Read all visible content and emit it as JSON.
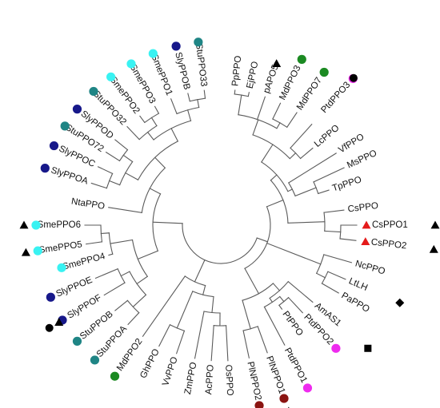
{
  "colors": {
    "navy": "#17188a",
    "teal": "#1f8585",
    "cyan": "#39f2f2",
    "green": "#1b8a22",
    "magenta": "#ee2bee",
    "maroon": "#8a1411",
    "red": "#e41a1a",
    "black": "#000000",
    "branch": "#5a5a5a"
  },
  "tree": {
    "leaves": [
      {
        "id": "PpPPO",
        "label": "PpPPO"
      },
      {
        "id": "EjPPO",
        "label": "EjPPO"
      },
      {
        "id": "pAPO5",
        "label": "pAPO5",
        "marker": "triangle"
      },
      {
        "id": "MdPPO3",
        "label": "MdPPO3",
        "dot": "green"
      },
      {
        "id": "MdPPO7",
        "label": "MdPPO7",
        "dot": "green"
      },
      {
        "id": "PtdPPO3",
        "label": "PtdPPO3",
        "dot": "magenta",
        "marker": "circle"
      },
      {
        "id": "LcPPO",
        "label": "LcPPO"
      },
      {
        "id": "VfPPO",
        "label": "VfPPO"
      },
      {
        "id": "MsPPO",
        "label": "MsPPO"
      },
      {
        "id": "TpPPO",
        "label": "TpPPO"
      },
      {
        "id": "CsPPO",
        "label": "CsPPO"
      },
      {
        "id": "CsPPO1",
        "label": "CsPPO1",
        "sym": "red-triangle",
        "marker": "triangle"
      },
      {
        "id": "CsPPO2",
        "label": "CsPPO2",
        "sym": "red-triangle",
        "marker": "triangle"
      },
      {
        "id": "NcPPO",
        "label": "NcPPO"
      },
      {
        "id": "LtLH",
        "label": "LtLH",
        "marker": "diamond"
      },
      {
        "id": "PaPPO",
        "label": "PaPPO"
      },
      {
        "id": "AmAS1",
        "label": "AmAS1",
        "marker": "square"
      },
      {
        "id": "PtdPPO2",
        "label": "PtdPPO2",
        "dot": "magenta"
      },
      {
        "id": "PtPPO",
        "label": "PtPPO"
      },
      {
        "id": "PtdPPO1",
        "label": "PtdPPO1",
        "dot": "magenta"
      },
      {
        "id": "PlNPPO1",
        "label": "PlNPPO1",
        "dot": "maroon",
        "marker": "triangle"
      },
      {
        "id": "PlNPPO2",
        "label": "PlNPPO2",
        "dot": "maroon",
        "marker": "triangle"
      },
      {
        "id": "OsPPO",
        "label": "OsPPO"
      },
      {
        "id": "AcPPO",
        "label": "AcPPO"
      },
      {
        "id": "ZmPPO",
        "label": "ZmPPO"
      },
      {
        "id": "VvPPO",
        "label": "VvPPO"
      },
      {
        "id": "GhPPO",
        "label": "GhPPO"
      },
      {
        "id": "MdPPO2",
        "label": "MdPPO2",
        "dot": "green"
      },
      {
        "id": "StuPPOA",
        "label": "StuPPOA",
        "dot": "teal"
      },
      {
        "id": "StuPPOB",
        "label": "StuPPOB",
        "dot": "teal"
      },
      {
        "id": "SlyPPOF",
        "label": "SlyPPOF",
        "dot": "navy",
        "marker": "circle-triangle"
      },
      {
        "id": "SlyPPOE",
        "label": "SlyPPOE",
        "dot": "navy"
      },
      {
        "id": "SmePPO4",
        "label": "SmePPO4",
        "dot": "cyan"
      },
      {
        "id": "SmePPO5",
        "label": "SmePPO5",
        "dot": "cyan",
        "marker": "triangle"
      },
      {
        "id": "SmePPO6",
        "label": "SmePPO6",
        "dot": "cyan",
        "marker": "triangle"
      },
      {
        "id": "NtaPPO",
        "label": "NtaPPO"
      },
      {
        "id": "SlyPPOA",
        "label": "SlyPPOA",
        "dot": "navy"
      },
      {
        "id": "SlyPPOC",
        "label": "SlyPPOC",
        "dot": "navy"
      },
      {
        "id": "StuPPO72",
        "label": "StuPPO72",
        "dot": "teal"
      },
      {
        "id": "SlyPPOD",
        "label": "SlyPPOD",
        "dot": "navy"
      },
      {
        "id": "StuPPO32",
        "label": "StuPPO32",
        "dot": "teal"
      },
      {
        "id": "SmePPO2",
        "label": "SmePPO2",
        "dot": "cyan"
      },
      {
        "id": "SmePPO3",
        "label": "SmePPO3",
        "dot": "cyan"
      },
      {
        "id": "SmePPO1",
        "label": "SmePPO1",
        "dot": "cyan"
      },
      {
        "id": "SlyPPOB",
        "label": "SlyPPOB",
        "dot": "navy"
      },
      {
        "id": "StuPPO33",
        "label": "StuPPO33",
        "dot": "teal"
      }
    ],
    "clades": [
      {
        "id": "c_ppej",
        "children": [
          "PpPPO",
          "EjPPO"
        ]
      },
      {
        "id": "c_md37",
        "children": [
          "MdPPO3",
          "MdPPO7"
        ]
      },
      {
        "id": "c_pa",
        "children": [
          "c_ppej",
          "pAPO5",
          "c_md37"
        ]
      },
      {
        "id": "c_ptlc",
        "children": [
          "PtdPPO3",
          "LcPPO"
        ]
      },
      {
        "id": "c_ros",
        "children": [
          "c_pa",
          "c_ptlc"
        ]
      },
      {
        "id": "c_mstp",
        "children": [
          "MsPPO",
          "TpPPO"
        ]
      },
      {
        "id": "c_fab",
        "children": [
          "VfPPO",
          "c_mstp"
        ]
      },
      {
        "id": "c_top",
        "children": [
          "c_ros",
          "c_fab"
        ]
      },
      {
        "id": "c_cs12",
        "children": [
          "CsPPO1",
          "CsPPO2"
        ]
      },
      {
        "id": "c_cs",
        "children": [
          "CsPPO",
          "c_cs12"
        ]
      },
      {
        "id": "c_upper",
        "children": [
          "c_top",
          "c_cs"
        ]
      },
      {
        "id": "c_ltpa",
        "children": [
          "LtLH",
          "PaPPO"
        ]
      },
      {
        "id": "c_nc",
        "children": [
          "NcPPO",
          "c_ltpa"
        ]
      },
      {
        "id": "c_pt2",
        "children": [
          "PtdPPO2",
          "PtPPO"
        ]
      },
      {
        "id": "c_pt",
        "children": [
          "c_pt2",
          "PtdPPO1"
        ]
      },
      {
        "id": "c_am",
        "children": [
          "AmAS1",
          "c_pt"
        ]
      },
      {
        "id": "c_pl",
        "children": [
          "PlNPPO1",
          "PlNPPO2"
        ]
      },
      {
        "id": "c_ptpl",
        "children": [
          "c_am",
          "c_pl"
        ]
      },
      {
        "id": "c_right",
        "children": [
          "c_upper",
          "c_nc",
          "c_ptpl"
        ]
      },
      {
        "id": "c_acos",
        "children": [
          "OsPPO",
          "AcPPO"
        ]
      },
      {
        "id": "c_mono",
        "children": [
          "c_acos",
          "ZmPPO"
        ]
      },
      {
        "id": "c_vvgh",
        "children": [
          "VvPPO",
          "GhPPO"
        ]
      },
      {
        "id": "c_mid",
        "children": [
          "c_mono",
          "c_vvgh"
        ]
      },
      {
        "id": "c_midmd",
        "children": [
          "c_mid",
          "MdPPO2"
        ]
      },
      {
        "id": "c_sab",
        "children": [
          "StuPPOA",
          "StuPPOB"
        ]
      },
      {
        "id": "c_sef",
        "children": [
          "SlyPPOF",
          "SlyPPOE"
        ]
      },
      {
        "id": "c_solB",
        "children": [
          "c_sab",
          "c_sef"
        ]
      },
      {
        "id": "c_sm56",
        "children": [
          "SmePPO5",
          "SmePPO6"
        ]
      },
      {
        "id": "c_sm",
        "children": [
          "SmePPO4",
          "c_sm56"
        ]
      },
      {
        "id": "c_sol_low",
        "children": [
          "c_solB",
          "c_sm"
        ]
      },
      {
        "id": "c_sac",
        "children": [
          "SlyPPOA",
          "SlyPPOC"
        ]
      },
      {
        "id": "c_s72d",
        "children": [
          "StuPPO72",
          "SlyPPOD"
        ]
      },
      {
        "id": "c_sa",
        "children": [
          "c_sac",
          "c_s72d"
        ]
      },
      {
        "id": "c_sm23",
        "children": [
          "SmePPO2",
          "SmePPO3"
        ]
      },
      {
        "id": "c_s32",
        "children": [
          "StuPPO32",
          "c_sm23"
        ]
      },
      {
        "id": "c_b33",
        "children": [
          "SlyPPOB",
          "StuPPO33"
        ]
      },
      {
        "id": "c_b1",
        "children": [
          "SmePPO1",
          "c_b33"
        ]
      },
      {
        "id": "c_sb",
        "children": [
          "c_s32",
          "c_b1"
        ]
      },
      {
        "id": "c_sol_up",
        "children": [
          "c_sa",
          "c_sb"
        ]
      },
      {
        "id": "c_sol_up2",
        "children": [
          "NtaPPO",
          "c_sol_up"
        ]
      },
      {
        "id": "c_left",
        "children": [
          "c_sol_low",
          "c_sol_up2"
        ]
      },
      {
        "id": "root",
        "children": [
          "c_right",
          "c_midmd",
          "c_left"
        ]
      }
    ]
  }
}
